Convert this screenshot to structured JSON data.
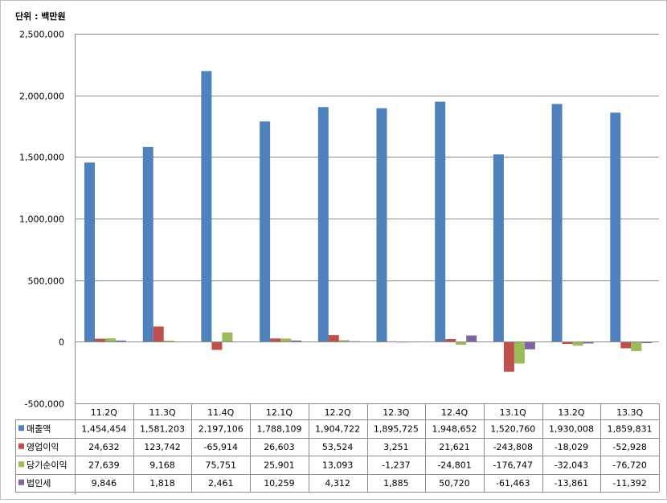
{
  "chart_data": {
    "type": "bar",
    "unit_label": "단위 : 백만원",
    "categories": [
      "11.2Q",
      "11.3Q",
      "11.4Q",
      "12.1Q",
      "12.2Q",
      "12.3Q",
      "12.4Q",
      "13.1Q",
      "13.2Q",
      "13.3Q"
    ],
    "series": [
      {
        "name": "매출액",
        "color": "#4f81bd",
        "values": [
          1454454,
          1581203,
          2197106,
          1788109,
          1904722,
          1895725,
          1948652,
          1520760,
          1930008,
          1859831
        ],
        "labels": [
          "1,454,454",
          "1,581,203",
          "2,197,106",
          "1,788,109",
          "1,904,722",
          "1,895,725",
          "1,948,652",
          "1,520,760",
          "1,930,008",
          "1,859,831"
        ]
      },
      {
        "name": "영업이익",
        "color": "#c0504d",
        "values": [
          24632,
          123742,
          -65914,
          26603,
          53524,
          3251,
          21621,
          -243808,
          -18029,
          -52928
        ],
        "labels": [
          "24,632",
          "123,742",
          "-65,914",
          "26,603",
          "53,524",
          "3,251",
          "21,621",
          "-243,808",
          "-18,029",
          "-52,928"
        ]
      },
      {
        "name": "당기순이익",
        "color": "#9bbb59",
        "values": [
          27639,
          9168,
          75751,
          25901,
          13093,
          -1237,
          -24801,
          -176747,
          -32043,
          -76720
        ],
        "labels": [
          "27,639",
          "9,168",
          "75,751",
          "25,901",
          "13,093",
          "-1,237",
          "-24,801",
          "-176,747",
          "-32,043",
          "-76,720"
        ]
      },
      {
        "name": "법인세",
        "color": "#8064a2",
        "values": [
          9846,
          1818,
          2461,
          10259,
          4312,
          1885,
          50720,
          -61463,
          -13861,
          -11392
        ],
        "labels": [
          "9,846",
          "1,818",
          "2,461",
          "10,259",
          "4,312",
          "1,885",
          "50,720",
          "-61,463",
          "-13,861",
          "-11,392"
        ]
      }
    ],
    "ylim": [
      -500000,
      2500000
    ],
    "yticks": [
      -500000,
      0,
      500000,
      1000000,
      1500000,
      2000000,
      2500000
    ],
    "ytick_labels": [
      "-500,000",
      "0",
      "500,000",
      "1,000,000",
      "1,500,000",
      "2,000,000",
      "2,500,000"
    ],
    "grid": true,
    "legend": "data-table"
  }
}
